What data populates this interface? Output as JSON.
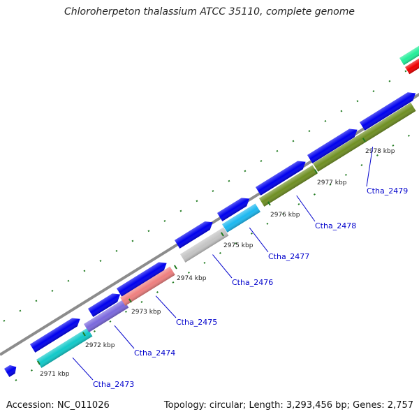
{
  "title": "Chloroherpeton thalassium ATCC 35110, complete genome",
  "footer": {
    "accession": "Accession: NC_011026",
    "summary": "Topology: circular; Length: 3,293,456 bp; Genes: 2,757"
  },
  "colors": {
    "forward_strand": "#0000ee",
    "backbone": "#8c8c8c",
    "tick": "#1f7a1f",
    "gene_label": "#0000cc",
    "top_right_feature_a": "#22ee99",
    "top_right_feature_b": "#ee0000"
  },
  "kbp_ticks": [
    {
      "kbp": 2971,
      "label": "2971 kbp"
    },
    {
      "kbp": 2972,
      "label": "2972 kbp"
    },
    {
      "kbp": 2973,
      "label": "2973 kbp"
    },
    {
      "kbp": 2974,
      "label": "2974 kbp"
    },
    {
      "kbp": 2975,
      "label": "2975 kbp"
    },
    {
      "kbp": 2976,
      "label": "2976 kbp"
    },
    {
      "kbp": 2977,
      "label": "2977 kbp"
    },
    {
      "kbp": 2978,
      "label": "2978 kbp"
    }
  ],
  "genes": [
    {
      "label": "Ctha_2473",
      "color": "#11c9c9"
    },
    {
      "label": "Ctha_2474",
      "color": "#7b68dd"
    },
    {
      "label": "Ctha_2475",
      "color": "#ee7f7f"
    },
    {
      "label": "Ctha_2476",
      "color": "#c4c4c4"
    },
    {
      "label": "Ctha_2477",
      "color": "#1cb8f0"
    },
    {
      "label": "Ctha_2478",
      "color": "#6f8f23"
    },
    {
      "label": "Ctha_2479",
      "color": "#6f8f23"
    }
  ]
}
